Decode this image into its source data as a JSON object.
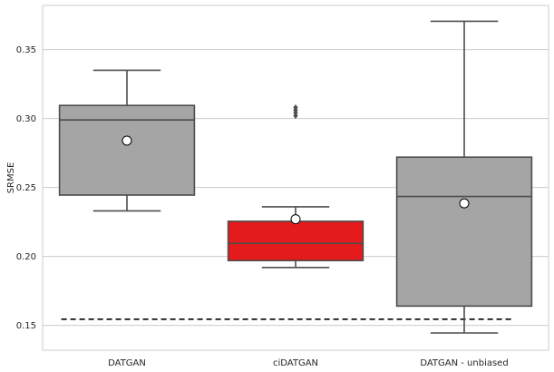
{
  "chart_data": {
    "type": "box",
    "title": "",
    "xlabel": "",
    "ylabel": "SRMSE",
    "ylim": [
      0.132,
      0.382
    ],
    "yticks": [
      0.15,
      0.2,
      0.25,
      0.3,
      0.35
    ],
    "ytick_labels": [
      "0.15",
      "0.20",
      "0.25",
      "0.30",
      "0.35"
    ],
    "grid": "horizontal",
    "categories": [
      "DATGAN",
      "ciDATGAN",
      "DATGAN - unbiased"
    ],
    "boxes": [
      {
        "label": "DATGAN",
        "whisker_low": 0.233,
        "q1": 0.2445,
        "median": 0.299,
        "q3": 0.3095,
        "whisker_high": 0.335,
        "mean": 0.284,
        "outliers": [],
        "color": "#a5a5a5"
      },
      {
        "label": "ciDATGAN",
        "whisker_low": 0.192,
        "q1": 0.197,
        "median": 0.2095,
        "q3": 0.2255,
        "whisker_high": 0.236,
        "mean": 0.227,
        "outliers": [
          0.302,
          0.304,
          0.306,
          0.308
        ],
        "color": "#e41a1c"
      },
      {
        "label": "DATGAN - unbiased",
        "whisker_low": 0.1445,
        "q1": 0.164,
        "median": 0.2435,
        "q3": 0.272,
        "whisker_high": 0.3705,
        "mean": 0.2385,
        "outliers": [],
        "color": "#a5a5a5"
      }
    ],
    "reference_line": {
      "value": 0.1545,
      "style": "dashed",
      "color": "#000000"
    },
    "colors": {
      "grid": "#cccccc",
      "box_edge": "#4d4d4d",
      "axes_edge": "#cccccc"
    }
  }
}
